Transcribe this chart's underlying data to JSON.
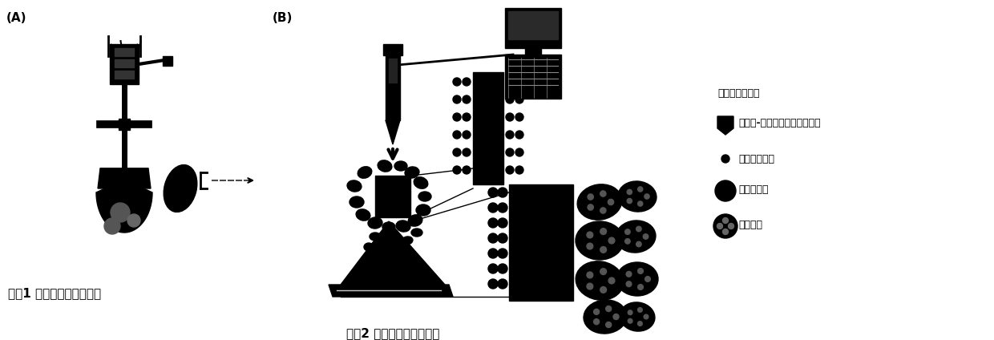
{
  "label_A": "(A)",
  "label_B": "(B)",
  "step1_text": "步骤1 油包水乳液制备示意",
  "step2_text": "步骤2 膜乳化制备过程示意",
  "legend_title": "聚乙烯醇水溶液",
  "legend_item1": "聚乳酸-羟基乙酸二氯甲烷溶液",
  "legend_item2": "磁性纳米颗粒",
  "legend_item3": "油包水乳液",
  "legend_item4": "复乳液滴",
  "bg_color": "#ffffff",
  "text_color": "#000000"
}
